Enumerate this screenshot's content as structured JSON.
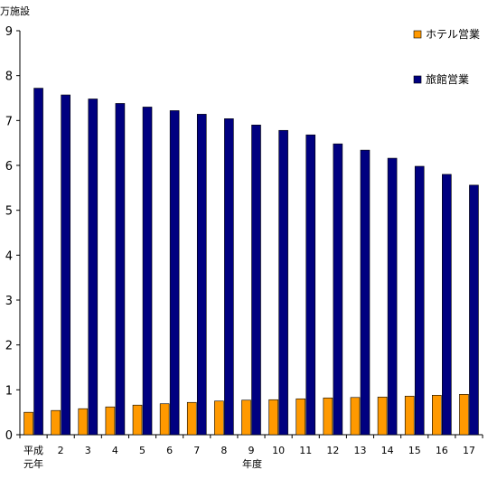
{
  "chart_data": {
    "type": "bar",
    "title": "",
    "ylabel": "万施設",
    "xlabel": "年度",
    "ylim": [
      0,
      9
    ],
    "yticks": [
      0,
      1,
      2,
      3,
      4,
      5,
      6,
      7,
      8,
      9
    ],
    "grid": false,
    "legend_position": "top-right",
    "categories": [
      "平成\n元年",
      "2",
      "3",
      "4",
      "5",
      "6",
      "7",
      "8",
      "9",
      "10",
      "11",
      "12",
      "13",
      "14",
      "15",
      "16",
      "17"
    ],
    "series": [
      {
        "name": "ホテル営業",
        "color": "#ff9900",
        "values": [
          0.5,
          0.54,
          0.58,
          0.62,
          0.66,
          0.69,
          0.72,
          0.75,
          0.77,
          0.78,
          0.8,
          0.82,
          0.83,
          0.84,
          0.86,
          0.88,
          0.9
        ]
      },
      {
        "name": "旅館営業",
        "color": "#000080",
        "values": [
          7.72,
          7.57,
          7.48,
          7.38,
          7.3,
          7.22,
          7.14,
          7.04,
          6.9,
          6.78,
          6.68,
          6.48,
          6.34,
          6.16,
          5.98,
          5.8,
          5.56
        ]
      }
    ]
  }
}
